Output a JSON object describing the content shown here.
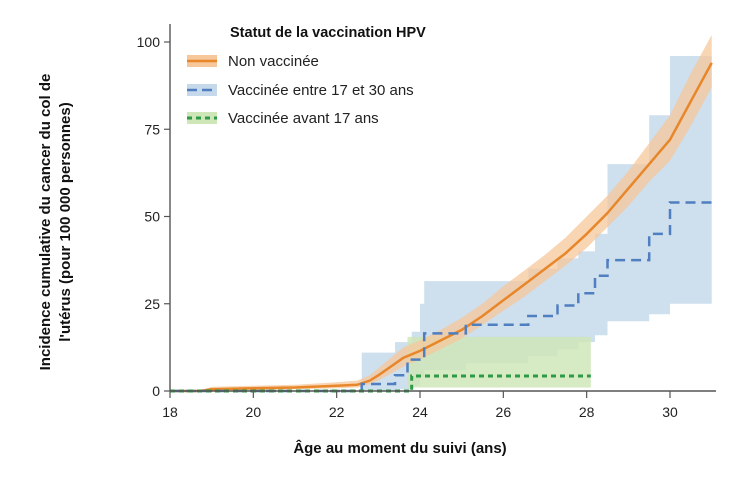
{
  "chart_data": {
    "type": "line",
    "title": "",
    "xlabel": "Âge au moment du suivi (ans)",
    "ylabel_lines": [
      "Incidence cumulative du cancer du col de",
      "l'utérus (pour 100 000 personnes)"
    ],
    "xlim": [
      18,
      31
    ],
    "ylim": [
      0,
      105
    ],
    "xticks": [
      18,
      20,
      22,
      24,
      26,
      28,
      30
    ],
    "yticks": [
      0,
      25,
      50,
      75,
      100
    ],
    "grid": false,
    "legend": {
      "title": "Statut de la vaccination HPV",
      "position": "upper-left"
    },
    "series": [
      {
        "name": "Non vaccinée",
        "color": "#e8862a",
        "band_color": "#f6c79a",
        "style": "solid",
        "x": [
          18,
          18.7,
          19,
          20,
          21,
          22,
          22.5,
          22.8,
          23,
          23.3,
          23.6,
          24,
          24.5,
          25,
          25.5,
          26,
          26.5,
          27,
          27.5,
          28,
          28.5,
          29,
          29.5,
          30,
          30.5,
          31
        ],
        "y": [
          0,
          0,
          0.5,
          0.8,
          1,
          1.5,
          1.8,
          3,
          4.5,
          7,
          9.5,
          11.5,
          14.5,
          17.5,
          21.5,
          26,
          30.5,
          35,
          39.5,
          45,
          51,
          58,
          65,
          72,
          83,
          94
        ],
        "lower": [
          0,
          0,
          0.1,
          0.3,
          0.5,
          0.8,
          1,
          2,
          3,
          5,
          7,
          9,
          12,
          15,
          19,
          23,
          27,
          31.5,
          36,
          41,
          47,
          53,
          60,
          66,
          76,
          87
        ],
        "upper": [
          0,
          0,
          1.2,
          1.5,
          1.8,
          2.5,
          3,
          4.5,
          6.5,
          9.5,
          12.5,
          14.5,
          17.5,
          21,
          25,
          30,
          34.5,
          39,
          44,
          50,
          56,
          63,
          71,
          79,
          91,
          102
        ]
      },
      {
        "name": "Vaccinée entre 17 et 30 ans",
        "color": "#4f7fc0",
        "band_color": "#c6d9ea",
        "style": "dashed",
        "step_x": [
          18,
          22.6,
          23.4,
          23.7,
          24.1,
          25.1,
          26.6,
          27.3,
          27.8,
          28.2,
          28.5,
          29.5,
          30,
          31
        ],
        "step_y": [
          0,
          2,
          4.5,
          9,
          16.5,
          19,
          21.5,
          24.5,
          28,
          33,
          37.5,
          45,
          54,
          54
        ],
        "band_x": [
          22.6,
          23.4,
          23.8,
          24,
          24.1,
          25.1,
          26.6,
          27.3,
          27.8,
          28.2,
          28.5,
          29.5,
          30,
          31
        ],
        "band_lower": [
          0,
          0.5,
          1.5,
          4,
          6,
          8,
          10,
          12,
          14,
          16,
          20,
          22,
          25,
          31
        ],
        "band_upper": [
          11,
          14,
          17,
          25,
          31.5,
          31.5,
          35,
          38,
          40,
          45,
          65,
          79,
          96,
          96
        ]
      },
      {
        "name": "Vaccinée avant 17 ans",
        "color": "#2e9a45",
        "band_color": "#cfe6b9",
        "style": "dotted",
        "step_x": [
          18,
          23.7,
          23.8,
          28.1
        ],
        "step_y": [
          0,
          0,
          4.3,
          4.3
        ],
        "band_x": [
          23.7,
          28.1
        ],
        "band_lower": [
          1,
          1
        ],
        "band_upper": [
          15.5,
          15.5
        ]
      }
    ]
  }
}
